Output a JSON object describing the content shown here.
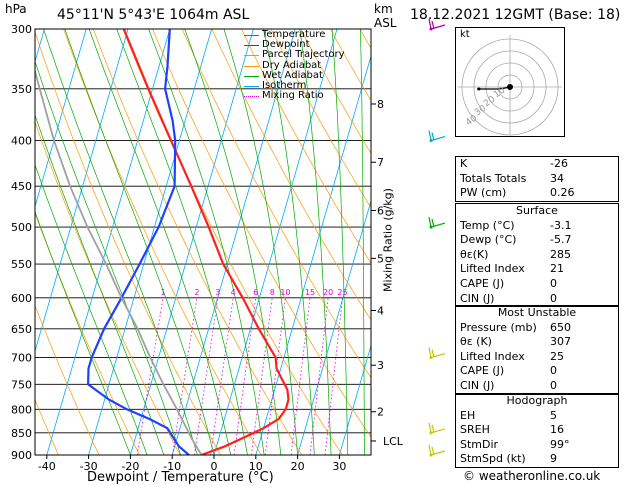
{
  "header": {
    "pressure_unit": "hPa",
    "location": "45°11'N  5°43'E  1064m  ASL",
    "km_label": "km",
    "asl_label": "ASL",
    "datetime": "18.12.2021  12GMT  (Base: 18)"
  },
  "legend": [
    {
      "label": "Temperature",
      "color": "#ff2020",
      "style": "solid"
    },
    {
      "label": "Dewpoint",
      "color": "#2040ff",
      "style": "solid"
    },
    {
      "label": "Parcel Trajectory",
      "color": "#a0a0a0",
      "style": "solid"
    },
    {
      "label": "Dry Adiabat",
      "color": "#ff9900",
      "style": "solid"
    },
    {
      "label": "Wet Adiabat",
      "color": "#00aa00",
      "style": "solid"
    },
    {
      "label": "Isotherm",
      "color": "#00aaff",
      "style": "solid"
    },
    {
      "label": "Mixing Ratio",
      "color": "#e000e0",
      "style": "dotted"
    }
  ],
  "chart_data": {
    "type": "line",
    "diagram": "skew-T log-P",
    "xlabel": "Dewpoint / Temperature (°C)",
    "ylabel": "hPa",
    "right_axis_label": "Mixing Ratio (g/kg)",
    "x_ticks": [
      -40,
      -30,
      -20,
      -10,
      0,
      10,
      20,
      30
    ],
    "pressure_levels": [
      300,
      350,
      400,
      450,
      500,
      550,
      600,
      650,
      700,
      750,
      800,
      850,
      900
    ],
    "altitude_ticks": [
      {
        "label": "8",
        "p": 364
      },
      {
        "label": "7",
        "p": 423
      },
      {
        "label": "6",
        "p": 479
      },
      {
        "label": "5",
        "p": 542
      },
      {
        "label": "4",
        "p": 620
      },
      {
        "label": "3",
        "p": 714
      },
      {
        "label": "2",
        "p": 805
      }
    ],
    "lcl": {
      "label": "LCL",
      "p": 868
    },
    "mixing_ratio_labels": [
      "1",
      "2",
      "3",
      "4",
      "6",
      "8",
      "10",
      "15",
      "20",
      "25"
    ],
    "mixing_ratio_values": [
      1,
      2,
      3,
      4,
      6,
      8,
      10,
      15,
      20,
      25
    ],
    "series": [
      {
        "name": "Temperature",
        "color": "#ff2020",
        "points": [
          [
            900,
            -3
          ],
          [
            880,
            2
          ],
          [
            860,
            6
          ],
          [
            840,
            10
          ],
          [
            820,
            13
          ],
          [
            800,
            14
          ],
          [
            780,
            14
          ],
          [
            760,
            13
          ],
          [
            740,
            11
          ],
          [
            720,
            9
          ],
          [
            700,
            8
          ],
          [
            650,
            2
          ],
          [
            600,
            -4
          ],
          [
            550,
            -11
          ],
          [
            500,
            -17
          ],
          [
            450,
            -24
          ],
          [
            400,
            -32
          ],
          [
            350,
            -41
          ],
          [
            300,
            -51
          ]
        ]
      },
      {
        "name": "Dewpoint",
        "color": "#2040ff",
        "points": [
          [
            900,
            -6
          ],
          [
            880,
            -9
          ],
          [
            860,
            -11
          ],
          [
            840,
            -13
          ],
          [
            820,
            -18
          ],
          [
            800,
            -24
          ],
          [
            780,
            -29
          ],
          [
            760,
            -33
          ],
          [
            750,
            -35
          ],
          [
            720,
            -36
          ],
          [
            700,
            -36
          ],
          [
            650,
            -35
          ],
          [
            600,
            -33
          ],
          [
            550,
            -31
          ],
          [
            500,
            -29
          ],
          [
            450,
            -28
          ],
          [
            400,
            -31
          ],
          [
            380,
            -33
          ],
          [
            350,
            -37
          ],
          [
            330,
            -38
          ],
          [
            300,
            -40
          ]
        ]
      },
      {
        "name": "Parcel Trajectory",
        "color": "#a0a0a0",
        "points": [
          [
            900,
            -3
          ],
          [
            868,
            -6
          ],
          [
            800,
            -12
          ],
          [
            750,
            -17
          ],
          [
            700,
            -22
          ],
          [
            650,
            -27
          ],
          [
            600,
            -33
          ],
          [
            550,
            -39
          ],
          [
            500,
            -46
          ],
          [
            450,
            -53
          ],
          [
            400,
            -60
          ],
          [
            350,
            -67
          ],
          [
            300,
            -75
          ]
        ]
      }
    ],
    "wind_barbs": [
      {
        "p": 300,
        "color": "#b000b0"
      },
      {
        "p": 400,
        "color": "#00aacc"
      },
      {
        "p": 500,
        "color": "#00aa00"
      },
      {
        "p": 700,
        "color": "#c8c800"
      },
      {
        "p": 850,
        "color": "#c8c800"
      },
      {
        "p": 900,
        "color": "#c8c800"
      }
    ]
  },
  "hodograph": {
    "unit_label": "kt",
    "ring_labels": [
      "10",
      "20",
      "30",
      "40"
    ]
  },
  "indices": [
    {
      "label": "K",
      "value": "-26"
    },
    {
      "label": "Totals Totals",
      "value": "34"
    },
    {
      "label": "PW (cm)",
      "value": "0.26"
    }
  ],
  "surface": {
    "title": "Surface",
    "rows": [
      {
        "label": "Temp (°C)",
        "value": "-3.1"
      },
      {
        "label": "Dewp (°C)",
        "value": "-5.7"
      },
      {
        "label": "θε(K)",
        "value": "285"
      },
      {
        "label": "Lifted Index",
        "value": "21"
      },
      {
        "label": "CAPE (J)",
        "value": "0"
      },
      {
        "label": "CIN (J)",
        "value": "0"
      }
    ]
  },
  "most_unstable": {
    "title": "Most Unstable",
    "rows": [
      {
        "label": "Pressure (mb)",
        "value": "650"
      },
      {
        "label": "θε (K)",
        "value": "307"
      },
      {
        "label": "Lifted Index",
        "value": "25"
      },
      {
        "label": "CAPE (J)",
        "value": "0"
      },
      {
        "label": "CIN (J)",
        "value": "0"
      }
    ]
  },
  "hodograph_table": {
    "title": "Hodograph",
    "rows": [
      {
        "label": "EH",
        "value": "5"
      },
      {
        "label": "SREH",
        "value": "16"
      },
      {
        "label": "StmDir",
        "value": "99°"
      },
      {
        "label": "StmSpd (kt)",
        "value": "9"
      }
    ]
  },
  "copyright": "© weatheronline.co.uk"
}
